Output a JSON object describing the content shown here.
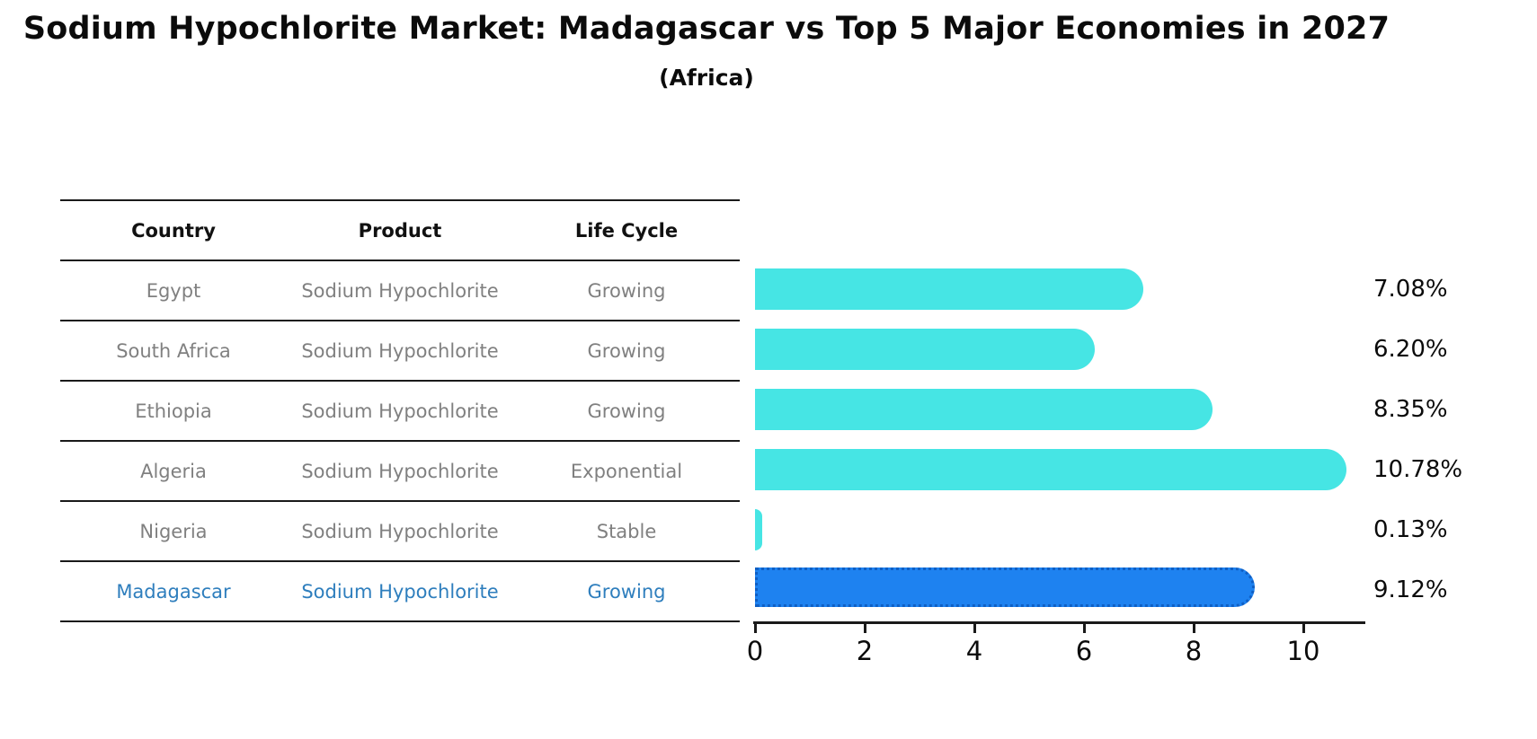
{
  "title": "Sodium Hypochlorite Market: Madagascar vs Top 5 Major Economies in 2027",
  "subtitle": "(Africa)",
  "table": {
    "headers": [
      "Country",
      "Product",
      "Life Cycle"
    ],
    "rows": [
      {
        "country": "Egypt",
        "product": "Sodium Hypochlorite",
        "life_cycle": "Growing",
        "highlight": false
      },
      {
        "country": "South Africa",
        "product": "Sodium Hypochlorite",
        "life_cycle": "Growing",
        "highlight": false
      },
      {
        "country": "Ethiopia",
        "product": "Sodium Hypochlorite",
        "life_cycle": "Growing",
        "highlight": false
      },
      {
        "country": "Algeria",
        "product": "Sodium Hypochlorite",
        "life_cycle": "Exponential",
        "highlight": false
      },
      {
        "country": "Nigeria",
        "product": "Sodium Hypochlorite",
        "life_cycle": "Stable",
        "highlight": false
      },
      {
        "country": "Madagascar",
        "product": "Sodium Hypochlorite",
        "life_cycle": "Growing",
        "highlight": true
      }
    ]
  },
  "chart_data": {
    "type": "bar",
    "orientation": "horizontal",
    "title": "Sodium Hypochlorite Market: Madagascar vs Top 5 Major Economies in 2027",
    "subtitle": "(Africa)",
    "categories": [
      "Egypt",
      "South Africa",
      "Ethiopia",
      "Algeria",
      "Nigeria",
      "Madagascar"
    ],
    "values": [
      7.08,
      6.2,
      8.35,
      10.78,
      0.13,
      9.12
    ],
    "value_labels": [
      "7.08%",
      "6.20%",
      "8.35%",
      "10.78%",
      "0.13%",
      "9.12%"
    ],
    "xlabel": "",
    "ylabel": "",
    "xticks": [
      0,
      2,
      4,
      6,
      8,
      10
    ],
    "xlim": [
      0,
      11.3
    ],
    "grid": false,
    "legend": false,
    "highlight_index": 5
  },
  "colors": {
    "bar": "#46E5E4",
    "highlight_bar": "#1E82F0",
    "highlight_bar_border": "#0f5fc4",
    "highlight_text": "#2E7EBD",
    "table_text": "#808080",
    "header_text": "#111111",
    "axis": "#1a1a1a"
  }
}
